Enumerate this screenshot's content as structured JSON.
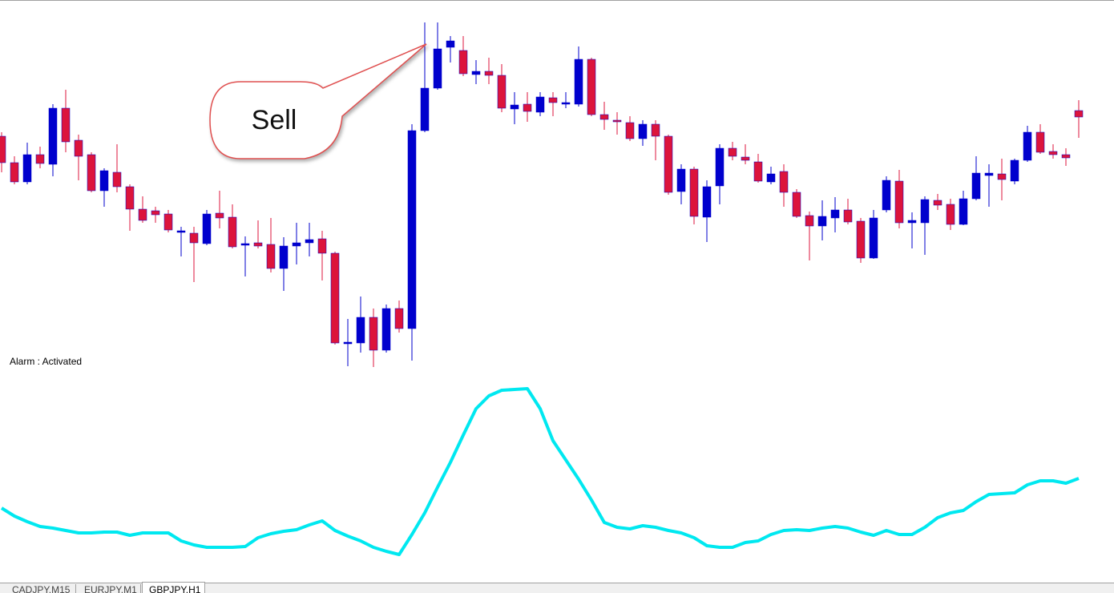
{
  "chart_data": [
    {
      "type": "candlestick",
      "open": [
        290,
        257,
        233,
        267,
        255,
        325,
        285,
        267,
        222,
        245,
        227,
        199,
        197,
        193,
        170,
        169,
        156,
        194,
        189,
        154,
        157,
        155,
        125,
        153,
        157,
        162,
        144,
        32,
        32,
        64,
        23,
        75,
        50,
        297,
        350,
        401,
        397,
        367,
        371,
        366,
        324,
        330,
        320,
        338,
        331,
        330,
        386,
        317,
        310,
        307,
        287,
        305,
        290,
        221,
        249,
        189,
        228,
        275,
        264,
        258,
        233,
        246,
        220,
        191,
        178,
        188,
        198,
        184,
        138,
        198,
        234,
        182,
        182,
        210,
        205,
        180,
        212,
        241,
        243,
        234,
        260,
        295,
        271,
        267,
        322
      ],
      "high": [
        295,
        265,
        282,
        277,
        330,
        348,
        292,
        270,
        250,
        280,
        230,
        215,
        202,
        198,
        177,
        177,
        198,
        222,
        205,
        165,
        185,
        188,
        164,
        182,
        182,
        172,
        146,
        62,
        90,
        75,
        80,
        85,
        305,
        432,
        432,
        415,
        415,
        385,
        388,
        380,
        345,
        345,
        345,
        345,
        345,
        402,
        388,
        333,
        320,
        315,
        310,
        310,
        292,
        255,
        252,
        235,
        280,
        283,
        280,
        268,
        252,
        255,
        224,
        196,
        210,
        214,
        212,
        188,
        198,
        240,
        248,
        195,
        215,
        218,
        212,
        222,
        265,
        255,
        262,
        262,
        303,
        305,
        280,
        275,
        335
      ],
      "low": [
        245,
        230,
        230,
        250,
        240,
        270,
        235,
        220,
        202,
        220,
        172,
        182,
        182,
        170,
        140,
        108,
        154,
        175,
        150,
        115,
        150,
        120,
        97,
        130,
        140,
        110,
        30,
        3,
        20,
        2,
        20,
        45,
        10,
        295,
        348,
        382,
        365,
        355,
        355,
        320,
        305,
        308,
        315,
        315,
        325,
        327,
        315,
        298,
        292,
        284,
        278,
        260,
        217,
        205,
        180,
        158,
        205,
        260,
        255,
        232,
        230,
        202,
        188,
        135,
        160,
        170,
        180,
        132,
        137,
        195,
        175,
        150,
        142,
        198,
        173,
        179,
        210,
        202,
        210,
        230,
        258,
        268,
        262,
        253,
        288
      ],
      "close": [
        257,
        233,
        267,
        256,
        325,
        283,
        265,
        222,
        247,
        227,
        199,
        185,
        192,
        173,
        172,
        157,
        193,
        188,
        152,
        156,
        153,
        125,
        153,
        157,
        161,
        144,
        32,
        33,
        64,
        23,
        75,
        50,
        297,
        350,
        399,
        409,
        368,
        371,
        366,
        325,
        329,
        321,
        339,
        332,
        332,
        386,
        317,
        311,
        309,
        287,
        305,
        290,
        220,
        249,
        190,
        227,
        275,
        265,
        260,
        234,
        243,
        220,
        190,
        178,
        190,
        198,
        183,
        138,
        188,
        235,
        182,
        185,
        211,
        204,
        180,
        212,
        244,
        244,
        236,
        260,
        295,
        270,
        267,
        263,
        314
      ],
      "up_color": "#0000cd",
      "down_color": "#dc143c",
      "ylim": [
        0,
        460
      ]
    },
    {
      "type": "line",
      "values": [
        91,
        81,
        74,
        68,
        66,
        63,
        60,
        60,
        61,
        61,
        57,
        60,
        60,
        60,
        50,
        45,
        42,
        42,
        42,
        43,
        54,
        59,
        62,
        64,
        70,
        75,
        63,
        56,
        50,
        42,
        37,
        33,
        58,
        85,
        117,
        148,
        182,
        215,
        231,
        238,
        239,
        240,
        215,
        175,
        151,
        127,
        101,
        73,
        67,
        65,
        69,
        67,
        63,
        60,
        54,
        44,
        42,
        42,
        48,
        50,
        58,
        63,
        64,
        63,
        66,
        68,
        66,
        61,
        57,
        63,
        58,
        58,
        67,
        79,
        85,
        88,
        99,
        108,
        109,
        110,
        120,
        125,
        125,
        122,
        128
      ],
      "color": "#00e8f0",
      "ylim": [
        0,
        260
      ]
    }
  ],
  "callout": "Sell",
  "alarm": "Alarm : Activated",
  "tabs": [
    "CADJPY,M15",
    "EURJPY,M1",
    "GBPJPY,H1"
  ]
}
